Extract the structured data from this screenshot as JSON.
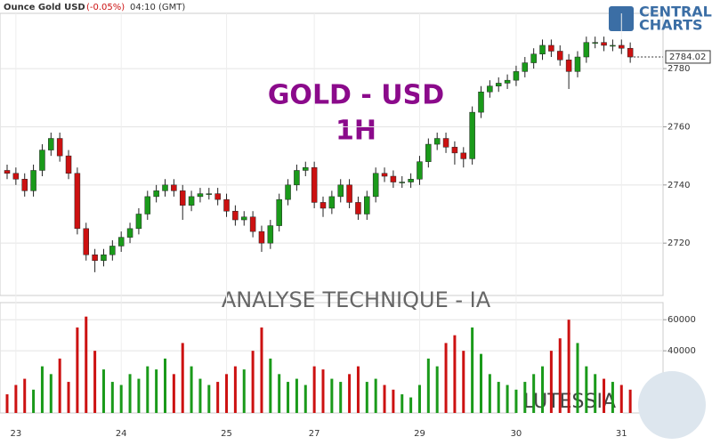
{
  "chart_data": {
    "type": "candlestick",
    "title": "Ounce Gold USD",
    "change": "(-0.05%)",
    "time": "04:10 (GMT)",
    "watermark": "GOLD - USD",
    "timeframe": "1H",
    "subtitle": "ANALYSE TECHNIQUE - IA",
    "brand": "LUTESSIA",
    "logo_top": "CENTRAL",
    "logo_bottom": "CHARTS",
    "last_price": 2784.02,
    "categories": [
      null,
      "23",
      null,
      null,
      null,
      null,
      null,
      null,
      null,
      null,
      null,
      null,
      null,
      "24",
      null,
      null,
      null,
      null,
      null,
      null,
      null,
      null,
      null,
      null,
      null,
      "25",
      null,
      null,
      null,
      null,
      null,
      null,
      null,
      null,
      null,
      "27",
      null,
      null,
      null,
      null,
      null,
      null,
      null,
      null,
      null,
      null,
      null,
      "29",
      null,
      null,
      null,
      null,
      null,
      null,
      null,
      null,
      null,
      null,
      "30",
      null,
      null,
      null,
      null,
      null,
      null,
      null,
      null,
      null,
      null,
      null,
      "31",
      null
    ],
    "open": [
      2745,
      2744,
      2742,
      2738,
      2745,
      2752,
      2756,
      2750,
      2744,
      2725,
      2716,
      2714,
      2716,
      2719,
      2722,
      2725,
      2730,
      2736,
      2738,
      2740,
      2738,
      2733,
      2736,
      2737,
      2737,
      2735,
      2731,
      2728,
      2729,
      2724,
      2720,
      2726,
      2735,
      2740,
      2745,
      2746,
      2734,
      2732,
      2736,
      2740,
      2734,
      2730,
      2736,
      2744,
      2743,
      2741,
      2741,
      2742,
      2748,
      2754,
      2756,
      2753,
      2751,
      2749,
      2765,
      2772,
      2774,
      2775,
      2776,
      2779,
      2782,
      2785,
      2788,
      2786,
      2783,
      2779,
      2784,
      2789,
      2789,
      2788,
      2788,
      2787
    ],
    "high": [
      2747,
      2746,
      2744,
      2747,
      2754,
      2758,
      2758,
      2752,
      2746,
      2727,
      2718,
      2718,
      2721,
      2724,
      2727,
      2732,
      2738,
      2740,
      2742,
      2742,
      2740,
      2738,
      2739,
      2739,
      2739,
      2737,
      2733,
      2731,
      2731,
      2726,
      2728,
      2737,
      2742,
      2747,
      2748,
      2748,
      2736,
      2738,
      2742,
      2742,
      2736,
      2738,
      2746,
      2746,
      2745,
      2743,
      2744,
      2750,
      2756,
      2758,
      2758,
      2755,
      2753,
      2767,
      2774,
      2776,
      2777,
      2778,
      2781,
      2784,
      2787,
      2790,
      2790,
      2788,
      2785,
      2786,
      2791,
      2791,
      2791,
      2790,
      2790,
      2789
    ],
    "low": [
      2742,
      2740,
      2736,
      2736,
      2743,
      2750,
      2748,
      2742,
      2723,
      2714,
      2710,
      2712,
      2714,
      2717,
      2720,
      2723,
      2728,
      2734,
      2736,
      2736,
      2728,
      2731,
      2734,
      2735,
      2733,
      2729,
      2726,
      2726,
      2722,
      2717,
      2718,
      2724,
      2733,
      2738,
      2743,
      2732,
      2729,
      2730,
      2734,
      2732,
      2728,
      2728,
      2734,
      2741,
      2739,
      2739,
      2739,
      2740,
      2746,
      2752,
      2751,
      2747,
      2746,
      2747,
      2763,
      2770,
      2772,
      2773,
      2774,
      2777,
      2780,
      2783,
      2784,
      2781,
      2773,
      2777,
      2782,
      2787,
      2786,
      2786,
      2785,
      2782
    ],
    "close": [
      2744,
      2742,
      2738,
      2745,
      2752,
      2756,
      2750,
      2744,
      2725,
      2716,
      2714,
      2716,
      2719,
      2722,
      2725,
      2730,
      2736,
      2738,
      2740,
      2738,
      2733,
      2736,
      2737,
      2737,
      2735,
      2731,
      2728,
      2729,
      2724,
      2720,
      2726,
      2735,
      2740,
      2745,
      2746,
      2734,
      2732,
      2736,
      2740,
      2734,
      2730,
      2736,
      2744,
      2743,
      2741,
      2741,
      2742,
      2748,
      2754,
      2756,
      2753,
      2751,
      2749,
      2765,
      2772,
      2774,
      2775,
      2776,
      2779,
      2782,
      2785,
      2788,
      2786,
      2783,
      2779,
      2784,
      2789,
      2789,
      2788,
      2788,
      2787,
      2784
    ],
    "volume": [
      12000,
      18000,
      22000,
      15000,
      30000,
      25000,
      35000,
      20000,
      55000,
      62000,
      40000,
      28000,
      20000,
      18000,
      25000,
      22000,
      30000,
      28000,
      35000,
      25000,
      45000,
      30000,
      22000,
      18000,
      20000,
      25000,
      30000,
      28000,
      40000,
      55000,
      35000,
      25000,
      20000,
      22000,
      18000,
      30000,
      28000,
      22000,
      20000,
      25000,
      30000,
      20000,
      22000,
      18000,
      15000,
      12000,
      10000,
      18000,
      35000,
      30000,
      45000,
      50000,
      40000,
      55000,
      38000,
      25000,
      20000,
      18000,
      15000,
      20000,
      25000,
      30000,
      40000,
      48000,
      60000,
      45000,
      30000,
      25000,
      22000,
      20000,
      18000,
      15000
    ],
    "up_color": "#1a9a1a",
    "down_color": "#cc1111",
    "ylim": [
      2702,
      2799
    ],
    "yticks": [
      2720,
      2740,
      2760,
      2780
    ],
    "y2lim": [
      0,
      71000
    ],
    "y2ticks": [
      40000,
      60000
    ],
    "grid": true
  }
}
